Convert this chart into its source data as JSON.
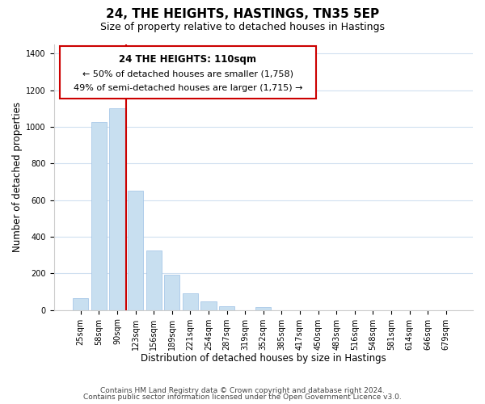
{
  "title": "24, THE HEIGHTS, HASTINGS, TN35 5EP",
  "subtitle": "Size of property relative to detached houses in Hastings",
  "xlabel": "Distribution of detached houses by size in Hastings",
  "ylabel": "Number of detached properties",
  "bar_labels": [
    "25sqm",
    "58sqm",
    "90sqm",
    "123sqm",
    "156sqm",
    "189sqm",
    "221sqm",
    "254sqm",
    "287sqm",
    "319sqm",
    "352sqm",
    "385sqm",
    "417sqm",
    "450sqm",
    "483sqm",
    "516sqm",
    "548sqm",
    "581sqm",
    "614sqm",
    "646sqm",
    "679sqm"
  ],
  "bar_values": [
    65,
    1025,
    1100,
    650,
    325,
    192,
    90,
    48,
    22,
    0,
    15,
    0,
    0,
    0,
    0,
    0,
    0,
    0,
    0,
    0,
    0
  ],
  "bar_color": "#c8dff0",
  "bar_edge_color": "#a8c8e8",
  "vline_color": "#cc0000",
  "vline_bar_index": 2,
  "ylim": [
    0,
    1450
  ],
  "yticks": [
    0,
    200,
    400,
    600,
    800,
    1000,
    1200,
    1400
  ],
  "annotation_title": "24 THE HEIGHTS: 110sqm",
  "annotation_line1": "← 50% of detached houses are smaller (1,758)",
  "annotation_line2": "49% of semi-detached houses are larger (1,715) →",
  "annotation_box_color": "#ffffff",
  "annotation_box_edge": "#cc0000",
  "footer_line1": "Contains HM Land Registry data © Crown copyright and database right 2024.",
  "footer_line2": "Contains public sector information licensed under the Open Government Licence v3.0.",
  "title_fontsize": 11,
  "subtitle_fontsize": 9,
  "axis_label_fontsize": 8.5,
  "tick_fontsize": 7,
  "annotation_title_fontsize": 8.5,
  "annotation_text_fontsize": 8,
  "footer_fontsize": 6.5,
  "background_color": "#ffffff",
  "grid_color": "#d0e0f0"
}
